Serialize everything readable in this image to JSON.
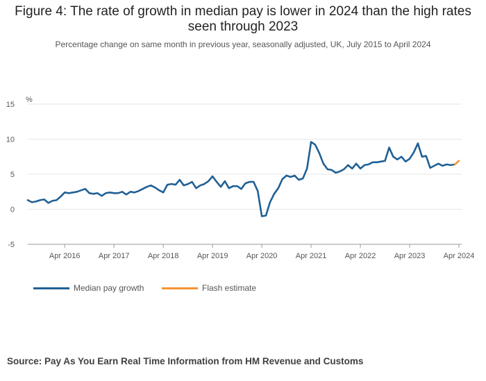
{
  "title": "Figure 4: The rate of growth in median pay is lower in 2024 than the high rates seen through 2023",
  "subtitle": "Percentage change on same month in previous year, seasonally adjusted, UK, July 2015 to April 2024",
  "source": "Source: Pay As You Earn Real Time Information from HM Revenue and Customs",
  "colors": {
    "median": "#206095",
    "flash": "#f39431",
    "grid": "#e6e6e6",
    "axis": "#999999"
  },
  "chart_data": {
    "type": "line",
    "title": "Figure 4: The rate of growth in median pay is lower in 2024 than the high rates seen through 2023",
    "ylabel": "%",
    "ylim": [
      -5,
      15
    ],
    "yticks": [
      -5,
      0,
      5,
      10,
      15
    ],
    "xticks": [
      "Apr 2016",
      "Apr 2017",
      "Apr 2018",
      "Apr 2019",
      "Apr 2020",
      "Apr 2021",
      "Apr 2022",
      "Apr 2023",
      "Apr 2024"
    ],
    "x_start": "Jul 2015",
    "x_end": "Apr 2024",
    "legend_position": "bottom",
    "series": [
      {
        "name": "Median pay growth",
        "color": "#206095",
        "start": "Jul 2015",
        "values": [
          1.3,
          1.0,
          1.1,
          1.3,
          1.4,
          0.9,
          1.2,
          1.3,
          1.8,
          2.4,
          2.3,
          2.4,
          2.5,
          2.7,
          2.9,
          2.3,
          2.2,
          2.3,
          1.9,
          2.3,
          2.4,
          2.3,
          2.3,
          2.5,
          2.1,
          2.5,
          2.4,
          2.6,
          2.9,
          3.2,
          3.4,
          3.1,
          2.7,
          2.4,
          3.5,
          3.6,
          3.5,
          4.2,
          3.4,
          3.6,
          3.9,
          3.0,
          3.4,
          3.6,
          4.0,
          4.7,
          3.9,
          3.2,
          4.0,
          3.0,
          3.3,
          3.3,
          2.9,
          3.7,
          3.9,
          3.9,
          2.6,
          -1.0,
          -0.9,
          1.0,
          2.2,
          3.0,
          4.3,
          4.8,
          4.6,
          4.8,
          4.2,
          4.4,
          5.8,
          9.6,
          9.2,
          8.0,
          6.5,
          5.7,
          5.6,
          5.2,
          5.4,
          5.7,
          6.3,
          5.8,
          6.5,
          5.8,
          6.3,
          6.4,
          6.7,
          6.7,
          6.8,
          6.9,
          8.8,
          7.5,
          7.1,
          7.5,
          6.8,
          7.2,
          8.1,
          9.4,
          7.5,
          7.6,
          5.9,
          6.2,
          6.5,
          6.2,
          6.4,
          6.3,
          6.4
        ]
      },
      {
        "name": "Flash estimate",
        "color": "#f39431",
        "start": "Mar 2024",
        "values": [
          6.4,
          6.9
        ]
      }
    ]
  }
}
